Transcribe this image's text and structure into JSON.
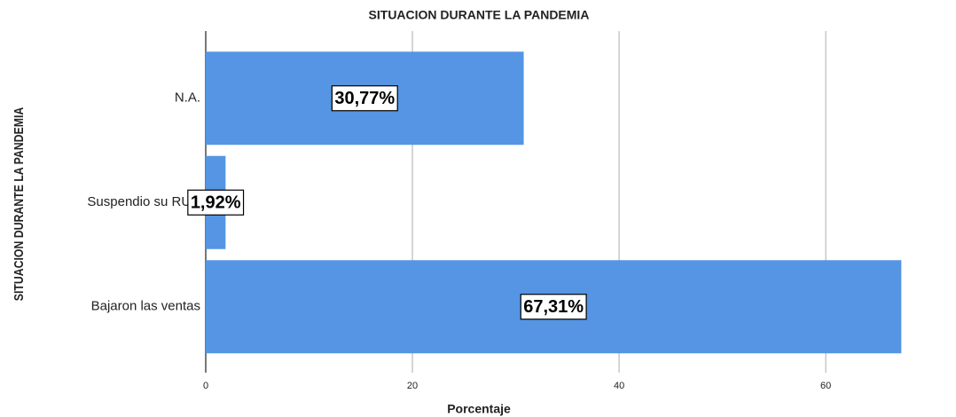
{
  "chart_data": {
    "type": "barh",
    "title": "SITUACION DURANTE LA PANDEMIA",
    "x_label": "Porcentaje",
    "y_label": "SITUACION DURANTE LA PANDEMIA",
    "categories": [
      "N.A.",
      "Suspendio su RUC",
      "Bajaron las ventas"
    ],
    "values": [
      30.77,
      1.92,
      67.31
    ],
    "value_labels": [
      "30,77%",
      "1,92%",
      "67,31%"
    ],
    "color": "#5595e3",
    "xlim": [
      0,
      72
    ],
    "xticks": [
      0,
      20,
      40,
      60
    ],
    "grid": true
  }
}
